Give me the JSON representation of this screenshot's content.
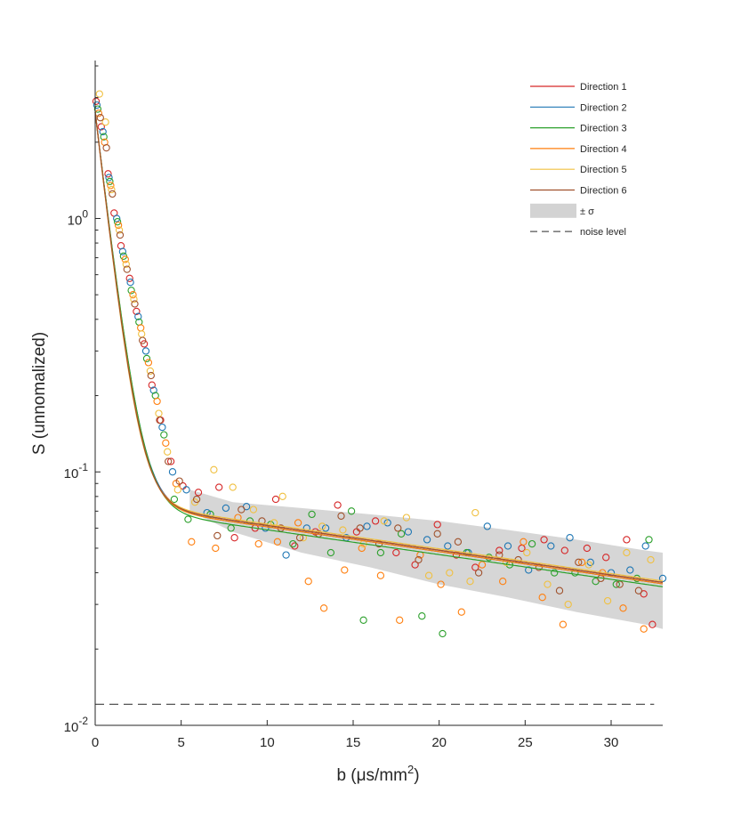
{
  "chart_data": {
    "type": "scatter",
    "title": "",
    "xlabel": "b (μs/mm",
    "xlabel_sup": "2",
    "xlabel_suffix": ")",
    "ylabel": "S (unnomalized)",
    "x_ticks": [
      0,
      5,
      10,
      15,
      20,
      25,
      30
    ],
    "x_tick_labels": [
      "0",
      "5",
      "10",
      "15",
      "20",
      "25",
      "30"
    ],
    "y_ticks": [
      0.01,
      0.1,
      1
    ],
    "y_tick_labels": [
      {
        "base": "10",
        "exp": "-2"
      },
      {
        "base": "10",
        "exp": "-1"
      },
      {
        "base": "10",
        "exp": "0"
      }
    ],
    "xlim": [
      0,
      33
    ],
    "ylim": [
      0.01,
      4.2
    ],
    "yscale": "log",
    "noise_level": 0.0121,
    "legend_position": "top-right",
    "legend": {
      "series": [
        "Direction 1",
        "Direction 2",
        "Direction 3",
        "Direction 4",
        "Direction 5",
        "Direction 6"
      ],
      "band_label": "± σ",
      "noise_label": "noise level"
    },
    "band": {
      "x": [
        5.5,
        8,
        12,
        16,
        20,
        24,
        28,
        32,
        33
      ],
      "upper": [
        0.085,
        0.076,
        0.072,
        0.068,
        0.064,
        0.059,
        0.054,
        0.049,
        0.048
      ],
      "lower": [
        0.07,
        0.058,
        0.048,
        0.042,
        0.036,
        0.032,
        0.028,
        0.025,
        0.024
      ]
    },
    "series": [
      {
        "name": "Direction 1",
        "color": "#d62728",
        "model": {
          "a": 2.55,
          "ra": 1.345,
          "c": 0.077,
          "rc": 0.0225
        },
        "points": [
          [
            0.05,
            2.9
          ],
          [
            0.35,
            2.3
          ],
          [
            0.75,
            1.5
          ],
          [
            1.1,
            1.05
          ],
          [
            1.5,
            0.78
          ],
          [
            2.0,
            0.58
          ],
          [
            2.4,
            0.43
          ],
          [
            2.85,
            0.32
          ],
          [
            3.3,
            0.22
          ],
          [
            3.8,
            0.16
          ],
          [
            4.4,
            0.11
          ],
          [
            5.1,
            0.088
          ],
          [
            6.0,
            0.083
          ],
          [
            7.2,
            0.087
          ],
          [
            8.1,
            0.055
          ],
          [
            9.3,
            0.06
          ],
          [
            10.5,
            0.078
          ],
          [
            11.6,
            0.051
          ],
          [
            12.8,
            0.058
          ],
          [
            14.1,
            0.074
          ],
          [
            15.2,
            0.058
          ],
          [
            16.3,
            0.064
          ],
          [
            17.5,
            0.048
          ],
          [
            18.6,
            0.043
          ],
          [
            19.9,
            0.062
          ],
          [
            21.0,
            0.047
          ],
          [
            22.1,
            0.042
          ],
          [
            23.5,
            0.049
          ],
          [
            24.8,
            0.05
          ],
          [
            26.1,
            0.054
          ],
          [
            27.3,
            0.049
          ],
          [
            28.6,
            0.05
          ],
          [
            29.7,
            0.046
          ],
          [
            30.9,
            0.054
          ],
          [
            31.9,
            0.033
          ],
          [
            32.4,
            0.025
          ]
        ]
      },
      {
        "name": "Direction 2",
        "color": "#1f77b4",
        "model": {
          "a": 2.55,
          "ra": 1.33,
          "c": 0.076,
          "rc": 0.0225
        },
        "points": [
          [
            0.1,
            2.8
          ],
          [
            0.45,
            2.2
          ],
          [
            0.8,
            1.45
          ],
          [
            1.25,
            1.0
          ],
          [
            1.6,
            0.74
          ],
          [
            2.05,
            0.56
          ],
          [
            2.5,
            0.41
          ],
          [
            2.95,
            0.3
          ],
          [
            3.4,
            0.21
          ],
          [
            3.9,
            0.15
          ],
          [
            4.5,
            0.1
          ],
          [
            5.3,
            0.085
          ],
          [
            6.5,
            0.069
          ],
          [
            7.6,
            0.072
          ],
          [
            8.8,
            0.073
          ],
          [
            9.9,
            0.06
          ],
          [
            11.1,
            0.047
          ],
          [
            12.3,
            0.06
          ],
          [
            13.4,
            0.06
          ],
          [
            14.6,
            0.055
          ],
          [
            15.8,
            0.061
          ],
          [
            17.0,
            0.063
          ],
          [
            18.2,
            0.058
          ],
          [
            19.3,
            0.054
          ],
          [
            20.5,
            0.051
          ],
          [
            21.7,
            0.048
          ],
          [
            22.8,
            0.061
          ],
          [
            24.0,
            0.051
          ],
          [
            25.2,
            0.041
          ],
          [
            26.5,
            0.051
          ],
          [
            27.6,
            0.055
          ],
          [
            28.8,
            0.044
          ],
          [
            30.0,
            0.04
          ],
          [
            31.1,
            0.041
          ],
          [
            32.0,
            0.051
          ],
          [
            33.0,
            0.038
          ]
        ]
      },
      {
        "name": "Direction 3",
        "color": "#2ca02c",
        "model": {
          "a": 2.55,
          "ra": 1.32,
          "c": 0.074,
          "rc": 0.0225
        },
        "points": [
          [
            0.15,
            2.7
          ],
          [
            0.5,
            2.1
          ],
          [
            0.85,
            1.4
          ],
          [
            1.3,
            0.97
          ],
          [
            1.65,
            0.71
          ],
          [
            2.1,
            0.52
          ],
          [
            2.55,
            0.39
          ],
          [
            3.0,
            0.28
          ],
          [
            3.5,
            0.2
          ],
          [
            4.0,
            0.14
          ],
          [
            4.6,
            0.078
          ],
          [
            5.4,
            0.065
          ],
          [
            6.7,
            0.068
          ],
          [
            7.9,
            0.06
          ],
          [
            9.0,
            0.064
          ],
          [
            10.2,
            0.062
          ],
          [
            11.5,
            0.052
          ],
          [
            12.6,
            0.068
          ],
          [
            13.7,
            0.048
          ],
          [
            14.9,
            0.07
          ],
          [
            15.6,
            0.026
          ],
          [
            16.6,
            0.048
          ],
          [
            17.8,
            0.057
          ],
          [
            19.0,
            0.027
          ],
          [
            20.2,
            0.023
          ],
          [
            21.6,
            0.048
          ],
          [
            22.9,
            0.046
          ],
          [
            24.1,
            0.043
          ],
          [
            25.4,
            0.052
          ],
          [
            26.7,
            0.04
          ],
          [
            27.9,
            0.04
          ],
          [
            29.1,
            0.037
          ],
          [
            30.3,
            0.036
          ],
          [
            31.5,
            0.038
          ],
          [
            32.2,
            0.054
          ]
        ]
      },
      {
        "name": "Direction 4",
        "color": "#ff7f0e",
        "model": {
          "a": 2.55,
          "ra": 1.355,
          "c": 0.076,
          "rc": 0.0225
        },
        "points": [
          [
            0.2,
            2.6
          ],
          [
            0.55,
            2.0
          ],
          [
            0.9,
            1.35
          ],
          [
            1.35,
            0.94
          ],
          [
            1.75,
            0.69
          ],
          [
            2.2,
            0.5
          ],
          [
            2.65,
            0.37
          ],
          [
            3.1,
            0.27
          ],
          [
            3.6,
            0.19
          ],
          [
            4.1,
            0.13
          ],
          [
            4.7,
            0.09
          ],
          [
            5.6,
            0.053
          ],
          [
            7.0,
            0.05
          ],
          [
            8.3,
            0.066
          ],
          [
            9.5,
            0.052
          ],
          [
            10.6,
            0.053
          ],
          [
            11.8,
            0.063
          ],
          [
            12.4,
            0.037
          ],
          [
            13.3,
            0.029
          ],
          [
            14.5,
            0.041
          ],
          [
            15.5,
            0.05
          ],
          [
            16.6,
            0.039
          ],
          [
            17.7,
            0.026
          ],
          [
            18.9,
            0.047
          ],
          [
            20.1,
            0.036
          ],
          [
            21.3,
            0.028
          ],
          [
            22.5,
            0.043
          ],
          [
            23.7,
            0.037
          ],
          [
            24.9,
            0.053
          ],
          [
            26.0,
            0.032
          ],
          [
            27.2,
            0.025
          ],
          [
            28.3,
            0.044
          ],
          [
            29.5,
            0.04
          ],
          [
            30.7,
            0.029
          ],
          [
            31.9,
            0.024
          ]
        ]
      },
      {
        "name": "Direction 5",
        "color": "#f0c040",
        "model": {
          "a": 2.55,
          "ra": 1.38,
          "c": 0.078,
          "rc": 0.0225
        },
        "points": [
          [
            0.25,
            3.1
          ],
          [
            0.6,
            2.4
          ],
          [
            0.95,
            1.3
          ],
          [
            1.4,
            0.9
          ],
          [
            1.8,
            0.66
          ],
          [
            2.25,
            0.48
          ],
          [
            2.7,
            0.35
          ],
          [
            3.2,
            0.25
          ],
          [
            3.7,
            0.17
          ],
          [
            4.2,
            0.12
          ],
          [
            4.8,
            0.085
          ],
          [
            5.8,
            0.076
          ],
          [
            6.9,
            0.102
          ],
          [
            8.0,
            0.087
          ],
          [
            9.2,
            0.071
          ],
          [
            10.4,
            0.063
          ],
          [
            10.9,
            0.08
          ],
          [
            12.1,
            0.055
          ],
          [
            13.2,
            0.061
          ],
          [
            14.4,
            0.059
          ],
          [
            15.6,
            0.052
          ],
          [
            16.8,
            0.064
          ],
          [
            18.1,
            0.066
          ],
          [
            19.4,
            0.039
          ],
          [
            20.6,
            0.04
          ],
          [
            21.8,
            0.037
          ],
          [
            22.1,
            0.069
          ],
          [
            23.9,
            0.044
          ],
          [
            25.1,
            0.048
          ],
          [
            26.3,
            0.036
          ],
          [
            27.5,
            0.03
          ],
          [
            28.7,
            0.043
          ],
          [
            29.8,
            0.031
          ],
          [
            30.9,
            0.048
          ],
          [
            32.3,
            0.045
          ]
        ]
      },
      {
        "name": "Direction 6",
        "color": "#a0522d",
        "model": {
          "a": 2.55,
          "ra": 1.365,
          "c": 0.077,
          "rc": 0.0225
        },
        "points": [
          [
            0.3,
            2.5
          ],
          [
            0.65,
            1.9
          ],
          [
            1.0,
            1.25
          ],
          [
            1.45,
            0.86
          ],
          [
            1.85,
            0.63
          ],
          [
            2.3,
            0.46
          ],
          [
            2.75,
            0.33
          ],
          [
            3.25,
            0.24
          ],
          [
            3.75,
            0.16
          ],
          [
            4.25,
            0.11
          ],
          [
            4.9,
            0.092
          ],
          [
            5.9,
            0.078
          ],
          [
            7.1,
            0.056
          ],
          [
            8.5,
            0.071
          ],
          [
            9.7,
            0.064
          ],
          [
            10.8,
            0.06
          ],
          [
            11.9,
            0.055
          ],
          [
            13.0,
            0.057
          ],
          [
            14.3,
            0.067
          ],
          [
            15.4,
            0.06
          ],
          [
            16.5,
            0.052
          ],
          [
            17.6,
            0.06
          ],
          [
            18.8,
            0.045
          ],
          [
            19.9,
            0.057
          ],
          [
            21.1,
            0.053
          ],
          [
            22.3,
            0.04
          ],
          [
            23.5,
            0.047
          ],
          [
            24.6,
            0.045
          ],
          [
            25.8,
            0.042
          ],
          [
            27.0,
            0.034
          ],
          [
            28.1,
            0.044
          ],
          [
            29.4,
            0.038
          ],
          [
            30.5,
            0.036
          ],
          [
            31.6,
            0.034
          ]
        ]
      }
    ]
  }
}
